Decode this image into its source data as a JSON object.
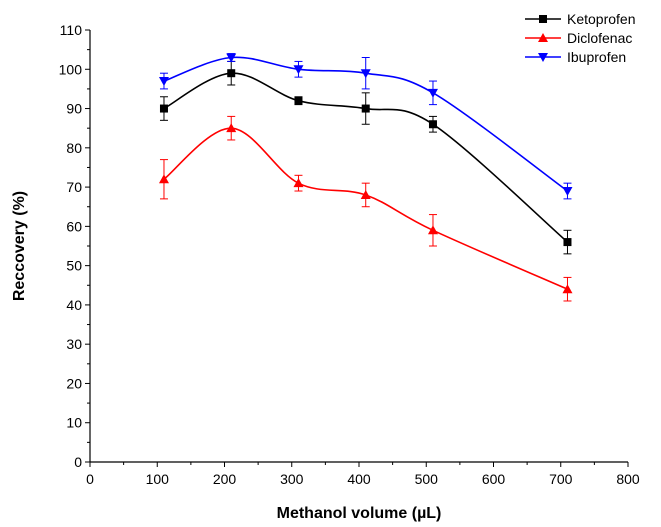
{
  "chart_data": {
    "type": "line",
    "title": "",
    "xlabel": "Methanol volume (µL)",
    "ylabel": "Reccovery (%)",
    "xlim": [
      0,
      800
    ],
    "ylim": [
      0,
      110
    ],
    "x_ticks": [
      0,
      100,
      200,
      300,
      400,
      500,
      600,
      700,
      800
    ],
    "y_ticks": [
      0,
      10,
      20,
      30,
      40,
      50,
      60,
      70,
      80,
      90,
      100,
      110
    ],
    "grid": false,
    "legend_position": "top-right",
    "x": [
      110,
      210,
      310,
      410,
      510,
      710
    ],
    "series": [
      {
        "name": "Ketoprofen",
        "color": "#000000",
        "marker": "square",
        "values": [
          90,
          99,
          92,
          90,
          86,
          56
        ],
        "errors": [
          3,
          3,
          1,
          4,
          2,
          3
        ]
      },
      {
        "name": "Diclofenac",
        "color": "#ff0000",
        "marker": "triangle-up",
        "values": [
          72,
          85,
          71,
          68,
          59,
          44
        ],
        "errors": [
          5,
          3,
          2,
          3,
          4,
          3
        ]
      },
      {
        "name": "Ibuprofen",
        "color": "#0000ff",
        "marker": "triangle-down",
        "values": [
          97,
          103,
          100,
          99,
          94,
          69
        ],
        "errors": [
          2,
          1,
          2,
          4,
          3,
          2
        ]
      }
    ]
  }
}
